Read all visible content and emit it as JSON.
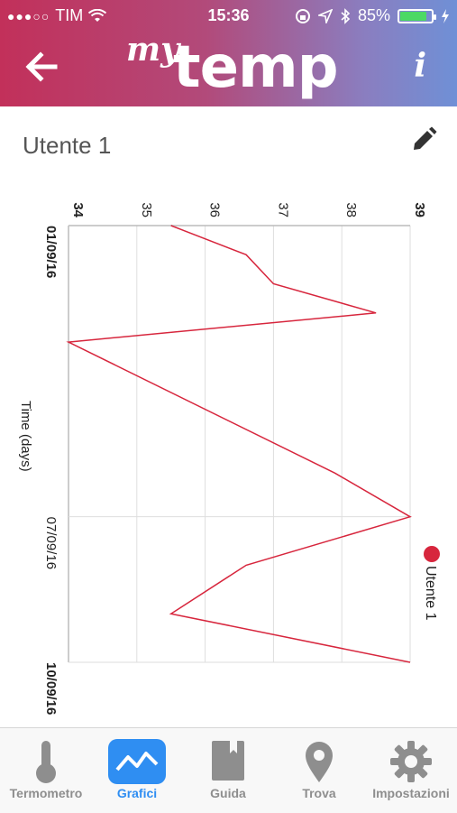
{
  "status": {
    "carrier": "TIM",
    "time": "15:36",
    "battery_pct": "85%",
    "battery_level": 0.85
  },
  "header": {
    "logo_my": "my",
    "logo_temp": "temp",
    "back_icon": "back-arrow-icon",
    "info_icon": "info-icon",
    "info_label": "i"
  },
  "user": {
    "name": "Utente 1",
    "edit_icon": "pencil-icon"
  },
  "colors": {
    "series": "#d7263d",
    "active": "#2f8ef2",
    "tab_inactive": "#8e8e8e"
  },
  "chart_data": {
    "type": "line",
    "orientation": "rotated-90",
    "temp_axis": {
      "ticks": [
        "34",
        "35",
        "36",
        "37",
        "38",
        "39"
      ],
      "range": [
        34,
        39
      ]
    },
    "time_axis": {
      "title": "Time (days)",
      "ticks": [
        "01/09/16",
        "07/09/16",
        "10/09/16"
      ]
    },
    "legend": {
      "label": "Utente 1",
      "placement": "right"
    },
    "grid": true,
    "series": [
      {
        "name": "Utente 1",
        "points": [
          {
            "day": 1.0,
            "temp": 35.5
          },
          {
            "day": 1.6,
            "temp": 36.6
          },
          {
            "day": 2.2,
            "temp": 37.0
          },
          {
            "day": 2.8,
            "temp": 38.5
          },
          {
            "day": 3.4,
            "temp": 34.0
          },
          {
            "day": 6.1,
            "temp": 37.9
          },
          {
            "day": 7.0,
            "temp": 39.0
          },
          {
            "day": 8.0,
            "temp": 36.6
          },
          {
            "day": 9.0,
            "temp": 35.5
          },
          {
            "day": 10.0,
            "temp": 39.0
          }
        ]
      }
    ]
  },
  "tabs": [
    {
      "label": "Termometro",
      "icon": "thermometer-icon",
      "active": false
    },
    {
      "label": "Grafici",
      "icon": "chart-icon",
      "active": true
    },
    {
      "label": "Guida",
      "icon": "book-icon",
      "active": false
    },
    {
      "label": "Trova",
      "icon": "map-pin-icon",
      "active": false
    },
    {
      "label": "Impostazioni",
      "icon": "gear-icon",
      "active": false
    }
  ]
}
